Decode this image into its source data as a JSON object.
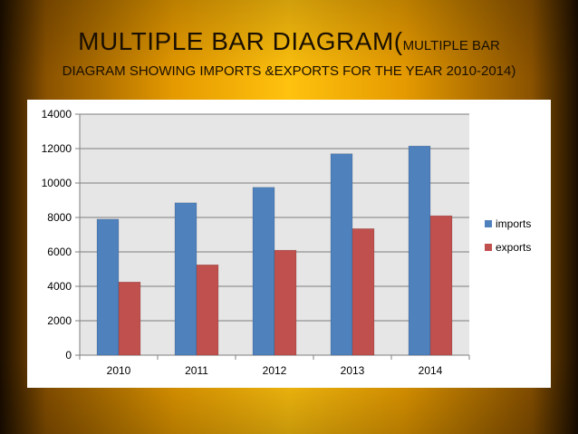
{
  "slide": {
    "title_main": "MULTIPLE BAR DIAGRAM(",
    "title_tail": "MULTIPLE BAR",
    "subtitle": "DIAGRAM SHOWING IMPORTS &EXPORTS FOR THE YEAR 2010-2014)"
  },
  "chart_data": {
    "type": "bar",
    "categories": [
      "2010",
      "2011",
      "2012",
      "2013",
      "2014"
    ],
    "series": [
      {
        "name": "imports",
        "values": [
          7900,
          8850,
          9750,
          11700,
          12150
        ],
        "color": "#4f81bd"
      },
      {
        "name": "exports",
        "values": [
          4250,
          5250,
          6100,
          7350,
          8100
        ],
        "color": "#c0504d"
      }
    ],
    "ylim": [
      0,
      14000
    ],
    "yticks": [
      "0",
      "2000",
      "4000",
      "6000",
      "8000",
      "10000",
      "12000",
      "14000"
    ],
    "grid": true,
    "legend_position": "right",
    "plot_background": "#e6e6e6"
  }
}
